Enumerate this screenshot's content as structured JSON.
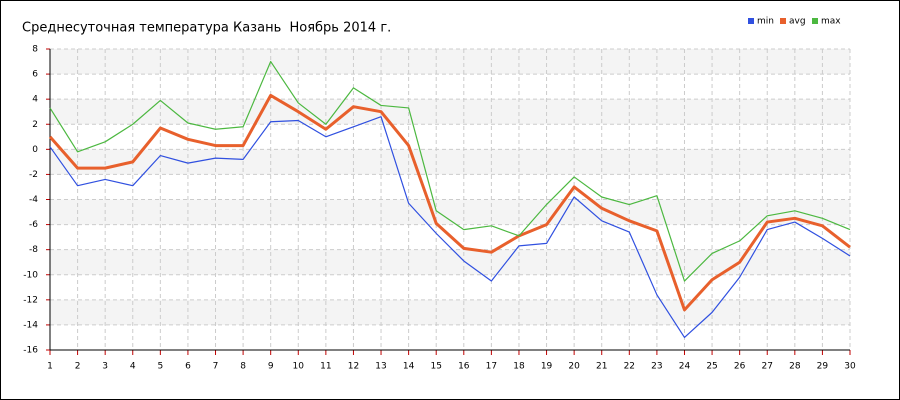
{
  "chart_data": {
    "type": "line",
    "title": "Среднесуточная температура Казань  Ноябрь 2014 г.",
    "x": [
      1,
      2,
      3,
      4,
      5,
      6,
      7,
      8,
      9,
      10,
      11,
      12,
      13,
      14,
      15,
      16,
      17,
      18,
      19,
      20,
      21,
      22,
      23,
      24,
      25,
      26,
      27,
      28,
      29,
      30
    ],
    "xlim": [
      1,
      30
    ],
    "xticks": [
      1,
      2,
      3,
      4,
      5,
      6,
      7,
      8,
      9,
      10,
      11,
      12,
      13,
      14,
      15,
      16,
      17,
      18,
      19,
      20,
      21,
      22,
      23,
      24,
      25,
      26,
      27,
      28,
      29,
      30
    ],
    "ylim": [
      -16,
      8
    ],
    "yticks": [
      -16,
      -14,
      -12,
      -10,
      -8,
      -6,
      -4,
      -2,
      0,
      2,
      4,
      6,
      8
    ],
    "grid": true,
    "legend": "top-right",
    "series": [
      {
        "name": "min",
        "color": "#3050e0",
        "values": [
          0.2,
          -2.9,
          -2.4,
          -2.9,
          -0.5,
          -1.1,
          -0.7,
          -0.8,
          2.2,
          2.3,
          1.0,
          1.8,
          2.6,
          -4.3,
          -6.7,
          -8.9,
          -10.5,
          -7.7,
          -7.5,
          -3.8,
          -5.7,
          -6.6,
          -11.6,
          -15.0,
          -13.0,
          -10.2,
          -6.4,
          -5.8,
          -7.1,
          -8.5
        ]
      },
      {
        "name": "avg",
        "color": "#e8602c",
        "values": [
          1.0,
          -1.5,
          -1.5,
          -1.0,
          1.7,
          0.8,
          0.3,
          0.3,
          4.3,
          3.0,
          1.6,
          3.4,
          3.0,
          0.3,
          -5.9,
          -7.9,
          -8.2,
          -6.9,
          -6.0,
          -3.0,
          -4.7,
          -5.7,
          -6.5,
          -12.8,
          -10.4,
          -9.0,
          -5.8,
          -5.5,
          -6.1,
          -7.8
        ]
      },
      {
        "name": "max",
        "color": "#4cb840",
        "values": [
          3.3,
          -0.2,
          0.6,
          2.0,
          3.9,
          2.1,
          1.6,
          1.8,
          7.0,
          3.7,
          2.0,
          4.9,
          3.5,
          3.3,
          -4.9,
          -6.4,
          -6.1,
          -6.9,
          -4.4,
          -2.2,
          -3.8,
          -4.4,
          -3.7,
          -10.5,
          -8.3,
          -7.3,
          -5.3,
          -4.9,
          -5.5,
          -6.4
        ]
      }
    ]
  }
}
